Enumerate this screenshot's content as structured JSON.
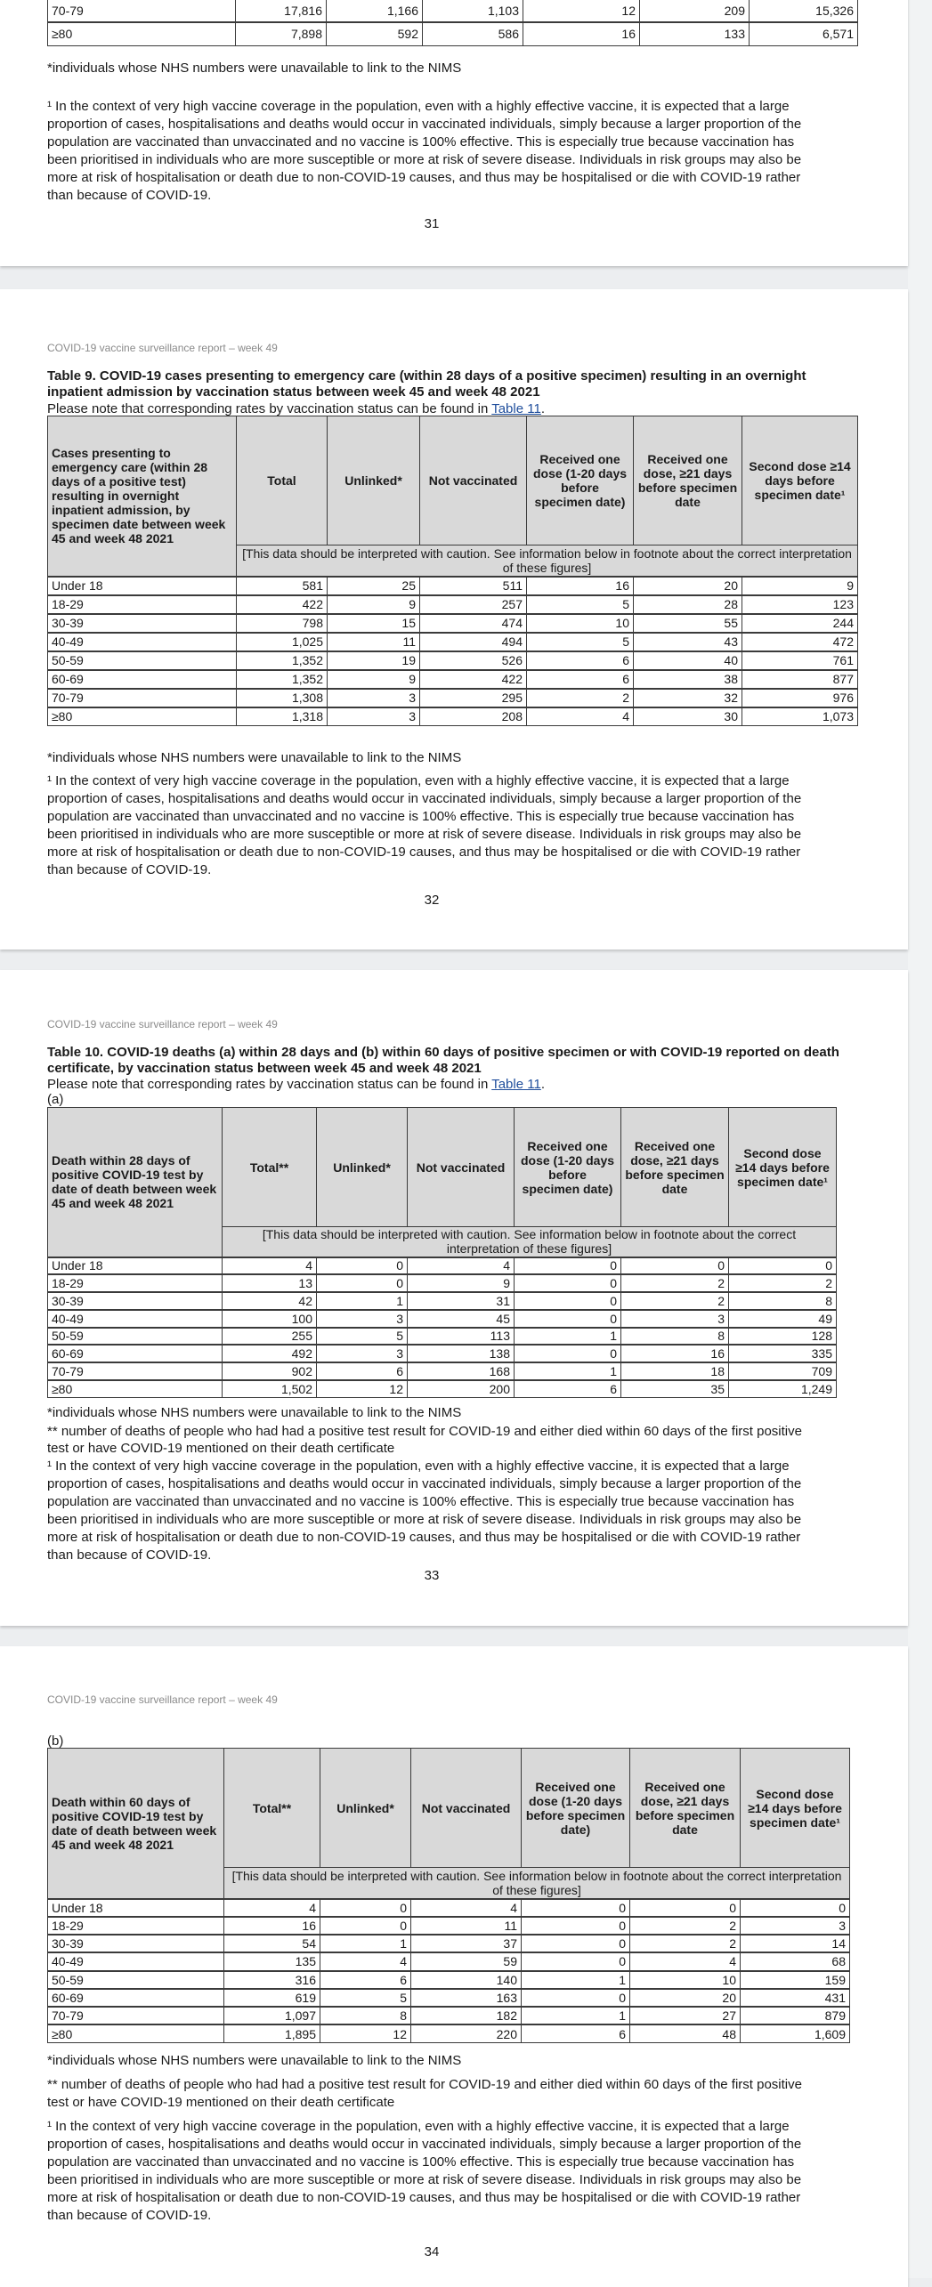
{
  "running_header": "COVID-19 vaccine surveillance report – week 49",
  "footnotes": {
    "unlinked": "*individuals whose NHS numbers were unavailable to link to the NIMS",
    "deaths_total": "** number of deaths of people who had had a positive test result for COVID-19 and either died within 60 days of the first positive test or have COVID-19 mentioned on their death certificate",
    "context": "¹ In the context of very high vaccine coverage in the population, even with a highly effective vaccine, it is expected that a large proportion of cases, hospitalisations and deaths would occur in vaccinated individuals, simply because a larger proportion of the population are vaccinated than unvaccinated and no vaccine is 100% effective. This is especially true because vaccination has been prioritised in individuals who are more susceptible or more at risk of severe disease. Individuals in risk groups may also be more at risk of hospitalisation or death due to non-COVID-19 causes, and thus may be hospitalised or die with COVID-19 rather than because of COVID-19."
  },
  "rates_note": {
    "prefix": "Please note that corresponding rates by vaccination status can be found in ",
    "link": "Table 11",
    "suffix": "."
  },
  "caution": "[This data should be interpreted with caution. See information below in footnote about the correct interpretation of these figures]",
  "page31": {
    "page_number": "31",
    "rows": [
      [
        "70-79",
        "17,816",
        "1,166",
        "1,103",
        "12",
        "209",
        "15,326"
      ],
      [
        "≥80",
        "7,898",
        "592",
        "586",
        "16",
        "133",
        "6,571"
      ]
    ]
  },
  "page32": {
    "page_number": "32",
    "title": "Table 9. COVID-19 cases presenting to emergency care (within 28 days of a positive specimen) resulting in an overnight inpatient admission by vaccination status between week 45 and week 48 2021",
    "header": [
      "Cases presenting to emergency care (within 28 days of a positive test) resulting in overnight inpatient admission, by specimen date between week 45 and week 48 2021",
      "Total",
      "Unlinked*",
      "Not vaccinated",
      "Received one dose (1-20 days before specimen date)",
      "Received one dose, ≥21 days before specimen date",
      "Second dose ≥14 days before specimen date¹"
    ],
    "rows": [
      [
        "Under 18",
        "581",
        "25",
        "511",
        "16",
        "20",
        "9"
      ],
      [
        "18-29",
        "422",
        "9",
        "257",
        "5",
        "28",
        "123"
      ],
      [
        "30-39",
        "798",
        "15",
        "474",
        "10",
        "55",
        "244"
      ],
      [
        "40-49",
        "1,025",
        "11",
        "494",
        "5",
        "43",
        "472"
      ],
      [
        "50-59",
        "1,352",
        "19",
        "526",
        "6",
        "40",
        "761"
      ],
      [
        "60-69",
        "1,352",
        "9",
        "422",
        "6",
        "38",
        "877"
      ],
      [
        "70-79",
        "1,308",
        "3",
        "295",
        "2",
        "32",
        "976"
      ],
      [
        "≥80",
        "1,318",
        "3",
        "208",
        "4",
        "30",
        "1,073"
      ]
    ]
  },
  "page33": {
    "page_number": "33",
    "title": "Table 10. COVID-19 deaths (a) within 28 days and (b) within 60 days of positive specimen or with COVID-19 reported on death certificate, by vaccination status between week 45 and week 48 2021",
    "sub_label": "(a)",
    "header": [
      "Death within 28 days of positive COVID-19 test by date of death between week 45 and week 48 2021",
      "Total**",
      "Unlinked*",
      "Not vaccinated",
      "Received one dose (1-20 days before specimen date)",
      "Received one dose, ≥21 days before specimen date",
      "Second dose ≥14 days before specimen date¹"
    ],
    "rows": [
      [
        "Under 18",
        "4",
        "0",
        "4",
        "0",
        "0",
        "0"
      ],
      [
        "18-29",
        "13",
        "0",
        "9",
        "0",
        "2",
        "2"
      ],
      [
        "30-39",
        "42",
        "1",
        "31",
        "0",
        "2",
        "8"
      ],
      [
        "40-49",
        "100",
        "3",
        "45",
        "0",
        "3",
        "49"
      ],
      [
        "50-59",
        "255",
        "5",
        "113",
        "1",
        "8",
        "128"
      ],
      [
        "60-69",
        "492",
        "3",
        "138",
        "0",
        "16",
        "335"
      ],
      [
        "70-79",
        "902",
        "6",
        "168",
        "1",
        "18",
        "709"
      ],
      [
        "≥80",
        "1,502",
        "12",
        "200",
        "6",
        "35",
        "1,249"
      ]
    ]
  },
  "page34": {
    "page_number": "34",
    "sub_label": "(b)",
    "header": [
      "Death within 60 days of positive COVID-19 test by date of death between week 45 and week 48 2021",
      "Total**",
      "Unlinked*",
      "Not vaccinated",
      "Received one dose (1-20 days before specimen date)",
      "Received one dose, ≥21 days before specimen date",
      "Second dose ≥14 days before specimen date¹"
    ],
    "rows": [
      [
        "Under 18",
        "4",
        "0",
        "4",
        "0",
        "0",
        "0"
      ],
      [
        "18-29",
        "16",
        "0",
        "11",
        "0",
        "2",
        "3"
      ],
      [
        "30-39",
        "54",
        "1",
        "37",
        "0",
        "2",
        "14"
      ],
      [
        "40-49",
        "135",
        "4",
        "59",
        "0",
        "4",
        "68"
      ],
      [
        "50-59",
        "316",
        "6",
        "140",
        "1",
        "10",
        "159"
      ],
      [
        "60-69",
        "619",
        "5",
        "163",
        "0",
        "20",
        "431"
      ],
      [
        "70-79",
        "1,097",
        "8",
        "182",
        "1",
        "27",
        "879"
      ],
      [
        "≥80",
        "1,895",
        "12",
        "220",
        "6",
        "48",
        "1,609"
      ]
    ]
  }
}
